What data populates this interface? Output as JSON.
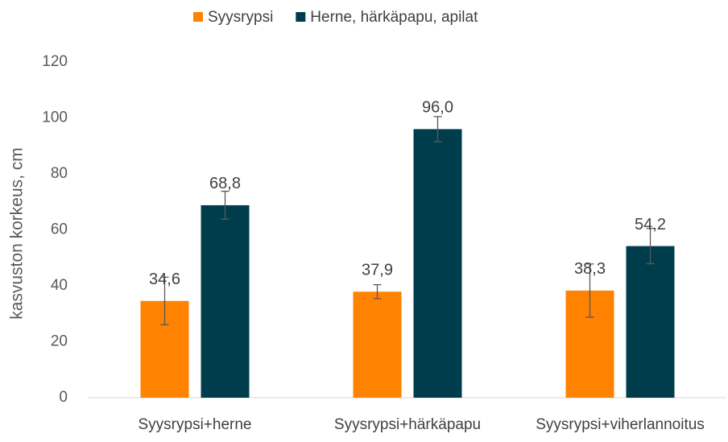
{
  "chart_data": {
    "type": "bar",
    "y_label": "kasvuston korkeus, cm",
    "categories": [
      "Syysrypsi+herne",
      "Syysrypsi+härkäpapu",
      "Syysrypsi+viherlannoitus"
    ],
    "series": [
      {
        "name": "Syysrypsi",
        "color": "#ff8200",
        "values": [
          34.6,
          37.9,
          38.3
        ],
        "value_labels": [
          "34,6",
          "37,9",
          "38,3"
        ],
        "errors": [
          8.5,
          2.5,
          9.5
        ]
      },
      {
        "name": "Herne, härkäpapu, apilat",
        "color": "#003d4c",
        "values": [
          68.8,
          96.0,
          54.2
        ],
        "value_labels": [
          "68,8",
          "96,0",
          "54,2"
        ],
        "errors": [
          5,
          4.5,
          6.3
        ]
      }
    ],
    "ylim": [
      0,
      120
    ],
    "yticks": [
      0,
      20,
      40,
      60,
      80,
      100,
      120
    ],
    "grid": false,
    "legend": "top"
  }
}
